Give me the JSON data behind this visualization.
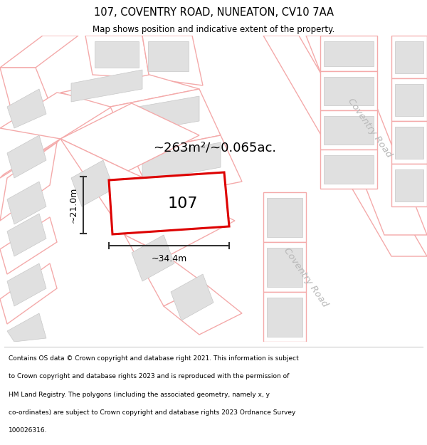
{
  "title": "107, COVENTRY ROAD, NUNEATON, CV10 7AA",
  "subtitle": "Map shows position and indicative extent of the property.",
  "footer_lines": [
    "Contains OS data © Crown copyright and database right 2021. This information is subject",
    "to Crown copyright and database rights 2023 and is reproduced with the permission of",
    "HM Land Registry. The polygons (including the associated geometry, namely x, y",
    "co-ordinates) are subject to Crown copyright and database rights 2023 Ordnance Survey",
    "100026316."
  ],
  "map_bg": "#faf5f5",
  "road_color": "#f4aaaa",
  "road_lw": 1.0,
  "building_fill": "#e0e0e0",
  "building_edge": "#c8c8c8",
  "highlight_color": "#dd0000",
  "highlight_fill": "#ffffff",
  "area_text": "~263m²/~0.065ac.",
  "label_107": "107",
  "dim_width_label": "~34.4m",
  "dim_height_label": "~21.0m",
  "road_label": "Coventry Road",
  "road_label_color": "#b8b8b8",
  "road_label_fontsize": 10,
  "road_label_rotation": -55,
  "road_label2_rotation": -55
}
